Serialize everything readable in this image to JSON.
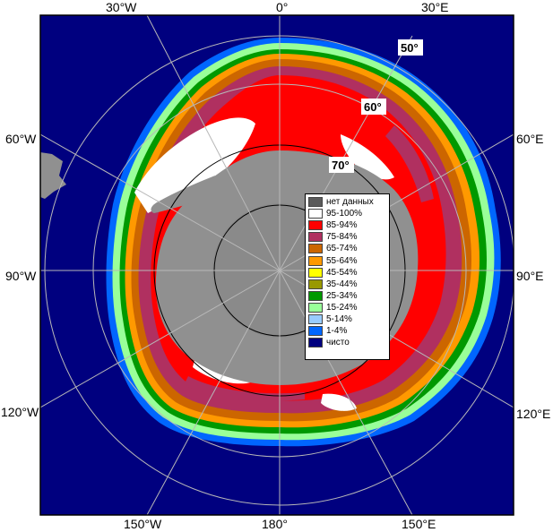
{
  "map": {
    "projection": "south-polar stereographic",
    "top_labels": [
      "30°W",
      "0°",
      "30°E"
    ],
    "left_labels": [
      "60°W",
      "90°W",
      "120°W"
    ],
    "right_labels": [
      "60°E",
      "90°E",
      "120°E"
    ],
    "bottom_labels": [
      "150°W",
      "180°",
      "150°E"
    ],
    "latitude_labels": [
      "50°",
      "60°",
      "70°"
    ],
    "colors": {
      "frame": "#ffffff",
      "ocean_clear": "#00007f",
      "land": "#909090",
      "no_data": "#5a5a5a",
      "grid": "#b8b8b8"
    }
  },
  "legend": {
    "items": [
      {
        "label": "нет данных",
        "color": "#5a5a5a"
      },
      {
        "label": "95-100%",
        "color": "#ffffff"
      },
      {
        "label": "85-94%",
        "color": "#ff0000"
      },
      {
        "label": "75-84%",
        "color": "#b03060"
      },
      {
        "label": "65-74%",
        "color": "#cc6600"
      },
      {
        "label": "55-64%",
        "color": "#ff9900"
      },
      {
        "label": "45-54%",
        "color": "#ffff00"
      },
      {
        "label": "35-44%",
        "color": "#999900"
      },
      {
        "label": "25-34%",
        "color": "#009900"
      },
      {
        "label": "15-24%",
        "color": "#99ff99"
      },
      {
        "label": "5-14%",
        "color": "#99ccff"
      },
      {
        "label": "1-4%",
        "color": "#0066ff"
      },
      {
        "label": "чисто",
        "color": "#00007f"
      }
    ]
  }
}
